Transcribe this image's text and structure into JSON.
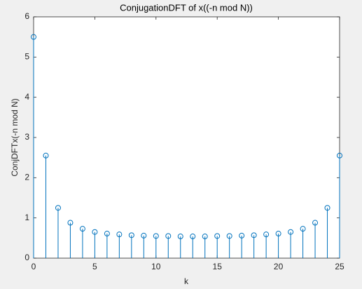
{
  "chart_data": {
    "type": "stem",
    "title": "ConjugationDFT of x((-n mod N))",
    "x_label": "k",
    "y_label": "ConjDFTx(-n mod N)",
    "x": [
      0,
      1,
      2,
      3,
      4,
      5,
      6,
      7,
      8,
      9,
      10,
      11,
      12,
      13,
      14,
      15,
      16,
      17,
      18,
      19,
      20,
      21,
      22,
      23,
      24,
      25
    ],
    "values": [
      5.5,
      2.55,
      1.25,
      0.88,
      0.73,
      0.65,
      0.61,
      0.59,
      0.57,
      0.56,
      0.55,
      0.55,
      0.54,
      0.54,
      0.54,
      0.55,
      0.55,
      0.56,
      0.57,
      0.59,
      0.61,
      0.65,
      0.73,
      0.88,
      1.25,
      2.55
    ],
    "color": "#0072bd",
    "xlim": [
      0,
      25
    ],
    "xticks": [
      0,
      5,
      10,
      15,
      20,
      25
    ],
    "ylim": [
      0,
      6
    ],
    "yticks": [
      0,
      1,
      2,
      3,
      4,
      5,
      6
    ],
    "grid": false
  }
}
